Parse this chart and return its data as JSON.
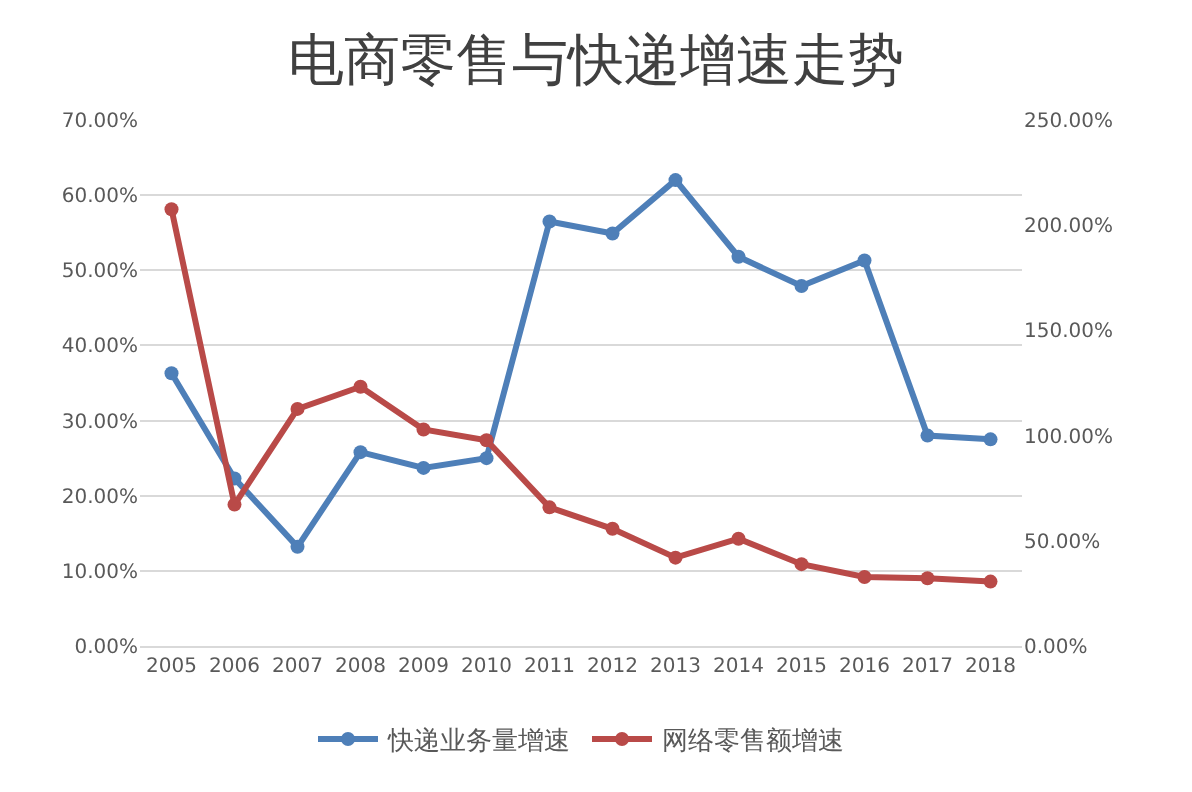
{
  "chart_data": {
    "type": "line",
    "title": "电商零售与快递增速走势",
    "categories": [
      "2005",
      "2006",
      "2007",
      "2008",
      "2009",
      "2010",
      "2011",
      "2012",
      "2013",
      "2014",
      "2015",
      "2016",
      "2017",
      "2018"
    ],
    "series": [
      {
        "name": "快递业务量增速",
        "color": "#4e7fb8",
        "values": [
          36.3,
          22.3,
          13.2,
          25.8,
          23.7,
          25.0,
          56.5,
          54.9,
          62.0,
          51.8,
          47.9,
          51.3,
          28.0,
          27.5
        ]
      },
      {
        "name": "网络零售额增速",
        "color": "#b94a48",
        "axis": "y2",
        "values": [
          207.6,
          67.2,
          112.7,
          123.2,
          102.9,
          97.8,
          65.9,
          55.7,
          42.0,
          51.0,
          38.9,
          32.8,
          32.2,
          30.6
        ]
      }
    ],
    "ylim": [
      0,
      70
    ],
    "yticks": [
      {
        "value": 0,
        "label": "0.00%"
      },
      {
        "value": 10,
        "label": "10.00%"
      },
      {
        "value": 20,
        "label": "20.00%"
      },
      {
        "value": 30,
        "label": "30.00%"
      },
      {
        "value": 40,
        "label": "40.00%"
      },
      {
        "value": 50,
        "label": "50.00%"
      },
      {
        "value": 60,
        "label": "60.00%"
      },
      {
        "value": 70,
        "label": "70.00%"
      }
    ],
    "y2lim": [
      0,
      250
    ],
    "y2ticks": [
      {
        "value": 0,
        "label": "0.00%"
      },
      {
        "value": 50,
        "label": "50.00%"
      },
      {
        "value": 100,
        "label": "100.00%"
      },
      {
        "value": 150,
        "label": "150.00%"
      },
      {
        "value": 200,
        "label": "200.00%"
      },
      {
        "value": 250,
        "label": "250.00%"
      }
    ],
    "grid": "y",
    "legend": "bottom",
    "marker": "circle",
    "line_style": "solid"
  }
}
